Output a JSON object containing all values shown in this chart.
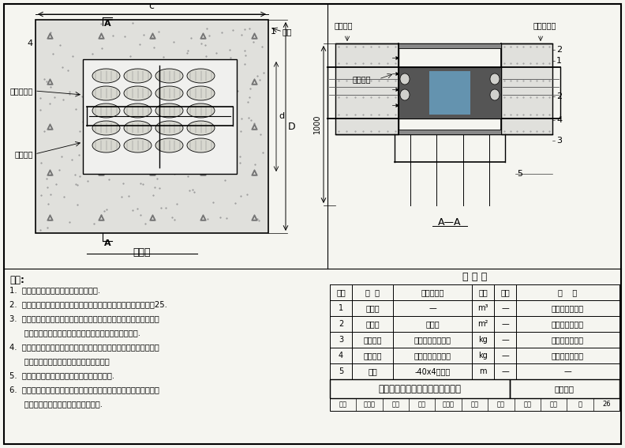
{
  "title": "电缆桥架穿楼板孔阻火包防火封堵",
  "bg_color": "#f5f5f0",
  "notes_title": "说明:",
  "notes": [
    "1.  根据楼板孔洞尺寸安装镀锌扁钢支架.",
    "2.  按孔洞尺寸和桥架形状裁切防火板，上侧的防火板四周至少多出25.",
    "3.  在楼板下侧支架上固定防火板，穿过电缆桥架．在防火板和桥架、",
    "      电缆之间、防火板之间的缝隙内填入柔性有机防火堵料.",
    "4.  填入阻火包，阻火包应按顺序依次摆放整齐，阻火包与电缆之间留",
    "      适当空隙．阻火包摆放至与楼板地面平齐",
    "5.  在阻火包和电缆之间填塞柔性有机防火堵料.",
    "6.  在楼板上侧安装防火板．在上侧防火板、桥架、电缆之间、防火板",
    "      之间的缝隙内填入柔性有机防火堵料."
  ],
  "table_title": "材 料 表",
  "table_headers": [
    "序号",
    "名  称",
    "型号及规格",
    "单位",
    "数量",
    "备    注"
  ],
  "table_rows": [
    [
      "1",
      "阻火包",
      "—",
      "m³",
      "—",
      "见相关技术资料"
    ],
    [
      "2",
      "防火板",
      "防火板",
      "m²",
      "—",
      "见相关技术资料"
    ],
    [
      "3",
      "防火涂料",
      "水性电缆防火涂料",
      "kg",
      "—",
      "见相关技术资料"
    ],
    [
      "4",
      "防火堵料",
      "柔性有机防火堵料",
      "kg",
      "—",
      "见相关技术资料"
    ],
    [
      "5",
      "支架",
      "-40x4，镀锌",
      "m",
      "—",
      "—"
    ]
  ],
  "footer_labels": [
    "审核",
    "王素英",
    "主任",
    "校对",
    "朱立功",
    "朱化",
    "设计",
    "同嘉",
    "汪磊",
    "页",
    "26"
  ]
}
